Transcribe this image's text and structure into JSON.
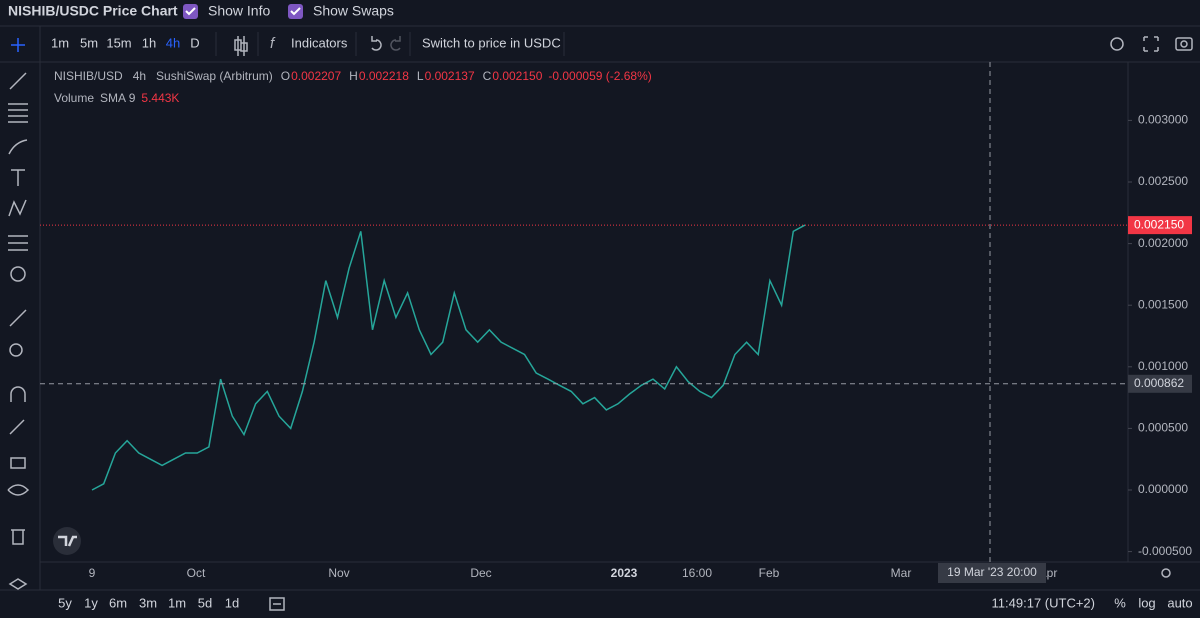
{
  "header": {
    "title": "NISHIB/USDC Price Chart",
    "toggles": [
      "Show Info",
      "Show Swaps"
    ]
  },
  "toolbar": {
    "intervals": [
      "1m",
      "5m",
      "15m",
      "1h",
      "4h",
      "D"
    ],
    "active_interval": "4h",
    "indicators": "Indicators",
    "switch": "Switch to price in USDC"
  },
  "legend": {
    "symbol": "NISHIB/USD",
    "interval": "4h",
    "exchange": "SushiSwap (Arbitrum)",
    "ohlc": [
      {
        "key": "O",
        "value": "0.002207"
      },
      {
        "key": "H",
        "value": "0.002218"
      },
      {
        "key": "L",
        "value": "0.002137"
      },
      {
        "key": "C",
        "value": "0.002150"
      }
    ],
    "change": "-0.000059 (-2.68%)",
    "volume": {
      "name": "Volume",
      "sma": "SMA 9",
      "value": "5.443K"
    }
  },
  "chart": {
    "color": "#26a69a",
    "yticks": [
      {
        "value": 0.003,
        "label": "0.003000"
      },
      {
        "value": 0.0025,
        "label": "0.002500"
      },
      {
        "value": 0.002,
        "label": "0.002000"
      },
      {
        "value": 0.0015,
        "label": "0.001500"
      },
      {
        "value": 0.001,
        "label": "0.001000"
      },
      {
        "value": 0.0005,
        "label": "0.000500"
      },
      {
        "value": 0,
        "label": "0.000000"
      },
      {
        "value": -0.0005,
        "label": "-0.000500"
      }
    ],
    "last_price": {
      "value": 0.00215,
      "label": "0.002150"
    },
    "crosshair_price": {
      "value": 0.000862,
      "label": "0.000862"
    },
    "crosshair_time": "19 Mar '23  20:00",
    "xlabels": [
      "9",
      "Oct",
      "Nov",
      "Dec",
      "2023",
      "16:00",
      "Feb",
      "Mar",
      "Apr"
    ],
    "closes": [
      0,
      5e-05,
      0.0003,
      0.0004,
      0.0003,
      0.00025,
      0.0002,
      0.00025,
      0.0003,
      0.0003,
      0.00035,
      0.0009,
      0.0006,
      0.00045,
      0.0007,
      0.0008,
      0.0006,
      0.0005,
      0.0008,
      0.0012,
      0.0017,
      0.0014,
      0.0018,
      0.0021,
      0.0013,
      0.0017,
      0.0014,
      0.0016,
      0.0013,
      0.0011,
      0.0012,
      0.0016,
      0.0013,
      0.0012,
      0.0013,
      0.0012,
      0.00115,
      0.0011,
      0.00095,
      0.0009,
      0.00085,
      0.0008,
      0.0007,
      0.00075,
      0.00065,
      0.0007,
      0.00078,
      0.00085,
      0.0009,
      0.00082,
      0.001,
      0.00088,
      0.0008,
      0.00075,
      0.00085,
      0.0011,
      0.0012,
      0.0011,
      0.0017,
      0.0015,
      0.0021,
      0.00215
    ]
  },
  "footer": {
    "ranges": [
      "5y",
      "1y",
      "6m",
      "3m",
      "1m",
      "5d",
      "1d"
    ],
    "time": "11:49:17 (UTC+2)",
    "options": [
      "%",
      "log",
      "auto"
    ]
  }
}
